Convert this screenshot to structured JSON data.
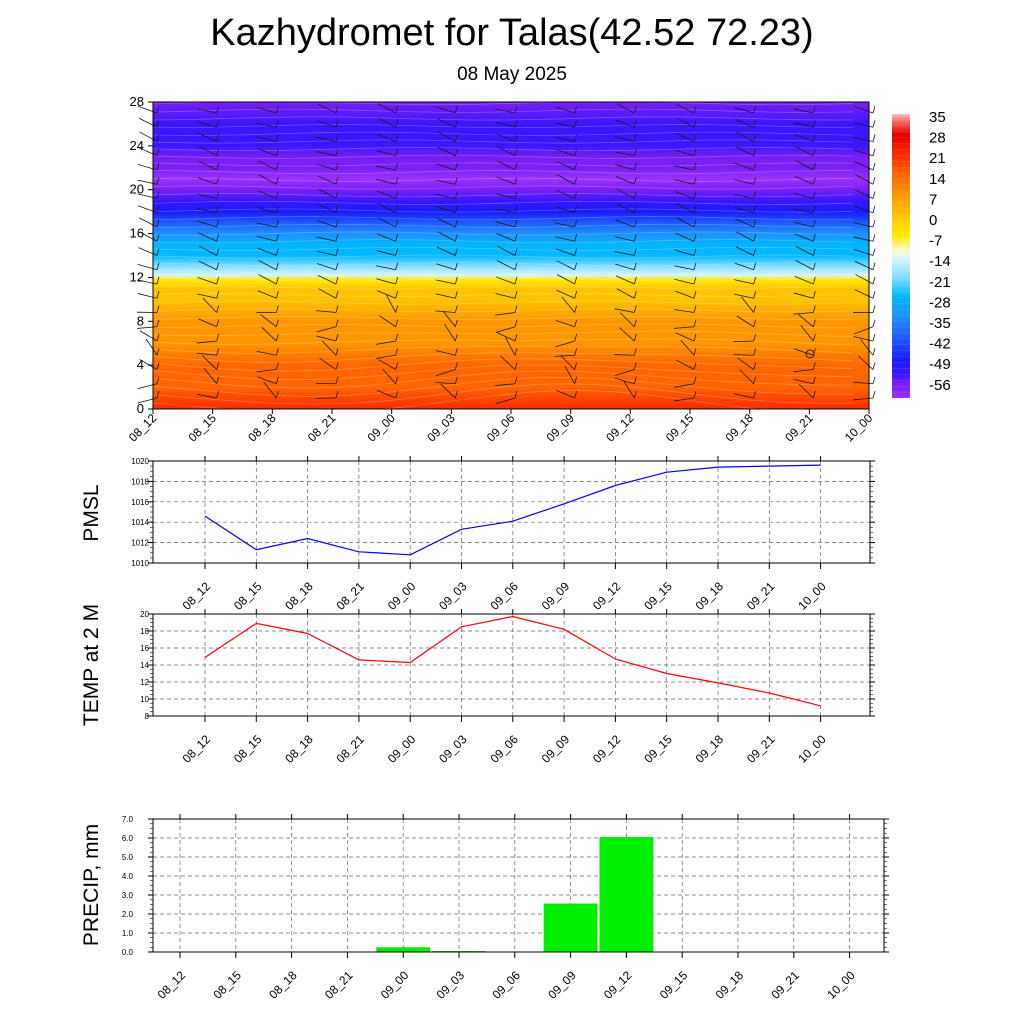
{
  "title": "Kazhydromet for Talas(42.52 72.23)",
  "subtitle": "08 May 2025",
  "chart_data": [
    {
      "type": "heatmap",
      "title": "",
      "x_tick_labels": [
        "08_12",
        "08_15",
        "08_18",
        "08_21",
        "09_00",
        "09_03",
        "09_06",
        "09_09",
        "09_12",
        "09_15",
        "09_18",
        "09_21",
        "10_00"
      ],
      "y_ticks": [
        0,
        4,
        8,
        12,
        16,
        20,
        24,
        28
      ],
      "ylim": [
        0,
        28
      ],
      "colorbar": {
        "labels": [
          "35",
          "28",
          "21",
          "14",
          "7",
          "0",
          "-7",
          "-14",
          "-21",
          "-28",
          "-35",
          "-42",
          "-49",
          "-56"
        ],
        "range": [
          -63,
          35
        ]
      },
      "profile_levels": [
        0,
        2,
        4,
        6,
        8,
        10,
        11,
        11.8,
        12.2,
        13,
        14,
        15,
        16,
        17,
        18,
        19,
        20,
        21,
        22,
        23,
        24,
        25,
        26,
        28
      ],
      "profile_values": [
        25,
        21,
        17,
        13,
        9,
        5,
        2,
        0,
        -12,
        -17,
        -22,
        -27,
        -33,
        -40,
        -47,
        -53,
        -57,
        -58,
        -57,
        -55,
        -54,
        -54,
        -54,
        -55
      ],
      "wind_barbs": "true"
    },
    {
      "type": "line",
      "ylabel": "PMSL",
      "categories": [
        "08_12",
        "08_15",
        "08_18",
        "08_21",
        "09_00",
        "09_03",
        "09_06",
        "09_09",
        "09_12",
        "09_15",
        "09_18",
        "09_21",
        "10_00"
      ],
      "values": [
        1014.6,
        1011.3,
        1012.4,
        1011.1,
        1010.8,
        1013.3,
        1014.1,
        1015.8,
        1017.6,
        1018.9,
        1019.4,
        1019.5,
        1019.6
      ],
      "ylim": [
        1010,
        1020
      ],
      "y_ticks": [
        1010,
        1012,
        1014,
        1016,
        1018,
        1020
      ],
      "color": "#0000ff"
    },
    {
      "type": "line",
      "ylabel": "TEMP at 2 M",
      "categories": [
        "08_12",
        "08_15",
        "08_18",
        "08_21",
        "09_00",
        "09_03",
        "09_06",
        "09_09",
        "09_12",
        "09_15",
        "09_18",
        "09_21",
        "10_00"
      ],
      "values": [
        14.9,
        18.9,
        17.7,
        14.6,
        14.3,
        18.5,
        19.7,
        18.2,
        14.7,
        13.0,
        11.9,
        10.7,
        9.2
      ],
      "ylim": [
        8,
        20
      ],
      "y_ticks": [
        8,
        10,
        12,
        14,
        16,
        18,
        20
      ],
      "color": "#ff0000"
    },
    {
      "type": "bar",
      "ylabel": "PRECIP, mm",
      "categories": [
        "08_12",
        "08_15",
        "08_18",
        "08_21",
        "09_00",
        "09_03",
        "09_06",
        "09_09",
        "09_12",
        "09_15",
        "09_18",
        "09_21",
        "10_00"
      ],
      "values": [
        0,
        0,
        0,
        0,
        0.25,
        0.05,
        0,
        2.55,
        6.05,
        0,
        0,
        0,
        0
      ],
      "ylim": [
        0,
        7
      ],
      "y_ticks": [
        "0.0",
        "1.0",
        "2.0",
        "3.0",
        "4.0",
        "5.0",
        "6.0",
        "7.0"
      ],
      "color": "#00ee00"
    }
  ]
}
